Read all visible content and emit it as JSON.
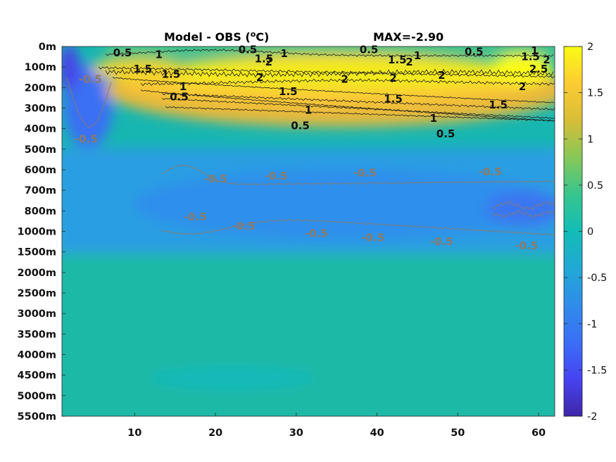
{
  "chart_data": {
    "type": "heatmap",
    "title": "Model - OBS (",
    "title_sup": "o",
    "title_end": "C)",
    "max_label": "MAX=-2.90",
    "x_ticks": [
      10,
      20,
      30,
      40,
      50,
      60
    ],
    "x_range": [
      1,
      62
    ],
    "y_levels": [
      "0m",
      "100m",
      "200m",
      "300m",
      "400m",
      "500m",
      "600m",
      "700m",
      "800m",
      "1000m",
      "1500m",
      "2000m",
      "2500m",
      "3000m",
      "3500m",
      "4000m",
      "4500m",
      "5000m",
      "5500m"
    ],
    "colorbar": {
      "ticks": [
        2,
        1.5,
        1,
        0.5,
        0,
        -0.5,
        -1,
        -1.5,
        -2
      ],
      "tick_labels": [
        "2",
        "1.5",
        "1",
        "0.5",
        "0",
        "-0.5",
        "-1",
        "-1.5",
        "-2"
      ],
      "range": [
        -2,
        2
      ],
      "colormap": "parula"
    },
    "contour_labels": [
      {
        "text": "0.5",
        "x": 8.5,
        "lvl": 0.3,
        "tone": "dark"
      },
      {
        "text": "1",
        "x": 13,
        "lvl": 0.4,
        "tone": "dark"
      },
      {
        "text": "0.5",
        "x": 24,
        "lvl": 0.15,
        "tone": "dark"
      },
      {
        "text": "1.5",
        "x": 26,
        "lvl": 0.6,
        "tone": "dark"
      },
      {
        "text": "2",
        "x": 26.6,
        "lvl": 0.75,
        "tone": "dark"
      },
      {
        "text": "1",
        "x": 28.5,
        "lvl": 0.35,
        "tone": "dark"
      },
      {
        "text": "0.5",
        "x": 39,
        "lvl": 0.15,
        "tone": "dark"
      },
      {
        "text": "1.5",
        "x": 42.5,
        "lvl": 0.65,
        "tone": "dark"
      },
      {
        "text": "2",
        "x": 44,
        "lvl": 0.75,
        "tone": "dark"
      },
      {
        "text": "1",
        "x": 45,
        "lvl": 0.45,
        "tone": "dark"
      },
      {
        "text": "0.5",
        "x": 52,
        "lvl": 0.25,
        "tone": "dark"
      },
      {
        "text": "1",
        "x": 59.5,
        "lvl": 0.2,
        "tone": "dark"
      },
      {
        "text": "1.5",
        "x": 59,
        "lvl": 0.5,
        "tone": "dark"
      },
      {
        "text": "2",
        "x": 61,
        "lvl": 0.65,
        "tone": "dark"
      },
      {
        "text": "2.5",
        "x": 60,
        "lvl": 1.1,
        "tone": "dark"
      },
      {
        "text": "1.5",
        "x": 11,
        "lvl": 1.1,
        "tone": "dark"
      },
      {
        "text": "1.5",
        "x": 14.5,
        "lvl": 1.35,
        "tone": "dark"
      },
      {
        "text": "2",
        "x": 25.5,
        "lvl": 1.5,
        "tone": "dark"
      },
      {
        "text": "2",
        "x": 36,
        "lvl": 1.6,
        "tone": "dark"
      },
      {
        "text": "2",
        "x": 42,
        "lvl": 1.55,
        "tone": "dark"
      },
      {
        "text": "2",
        "x": 48,
        "lvl": 1.4,
        "tone": "dark"
      },
      {
        "text": "2",
        "x": 58,
        "lvl": 1.95,
        "tone": "dark"
      },
      {
        "text": "1",
        "x": 16,
        "lvl": 1.95,
        "tone": "dark"
      },
      {
        "text": "0.5",
        "x": 15.5,
        "lvl": 2.45,
        "tone": "dark"
      },
      {
        "text": "1.5",
        "x": 29,
        "lvl": 2.2,
        "tone": "dark"
      },
      {
        "text": "1.5",
        "x": 42,
        "lvl": 2.55,
        "tone": "dark"
      },
      {
        "text": "1.5",
        "x": 55,
        "lvl": 2.85,
        "tone": "dark"
      },
      {
        "text": "1",
        "x": 31.5,
        "lvl": 3.1,
        "tone": "dark"
      },
      {
        "text": "1",
        "x": 47,
        "lvl": 3.5,
        "tone": "dark"
      },
      {
        "text": "0.5",
        "x": 30.5,
        "lvl": 3.85,
        "tone": "dark"
      },
      {
        "text": "0.5",
        "x": 48.5,
        "lvl": 4.25,
        "tone": "dark"
      },
      {
        "text": "-0.5",
        "x": 4.5,
        "lvl": 1.6,
        "tone": "gray"
      },
      {
        "text": "-0.5",
        "x": 4,
        "lvl": 4.5,
        "tone": "gray"
      },
      {
        "text": "-0.5",
        "x": 20,
        "lvl": 6.45,
        "tone": "gray"
      },
      {
        "text": "-0.5",
        "x": 27.5,
        "lvl": 6.3,
        "tone": "gray"
      },
      {
        "text": "-0.5",
        "x": 38.5,
        "lvl": 6.15,
        "tone": "gray"
      },
      {
        "text": "-0.5",
        "x": 54,
        "lvl": 6.1,
        "tone": "gray"
      },
      {
        "text": "-0.5",
        "x": 17.5,
        "lvl": 8.3,
        "tone": "gray"
      },
      {
        "text": "-0.5",
        "x": 23.5,
        "lvl": 8.75,
        "tone": "gray"
      },
      {
        "text": "-0.5",
        "x": 32.5,
        "lvl": 9.1,
        "tone": "gray"
      },
      {
        "text": "-0.5",
        "x": 39.5,
        "lvl": 9.3,
        "tone": "gray"
      },
      {
        "text": "-0.5",
        "x": 48,
        "lvl": 9.5,
        "tone": "gray"
      },
      {
        "text": "-0.5",
        "x": 58.5,
        "lvl": 9.7,
        "tone": "gray"
      }
    ]
  }
}
